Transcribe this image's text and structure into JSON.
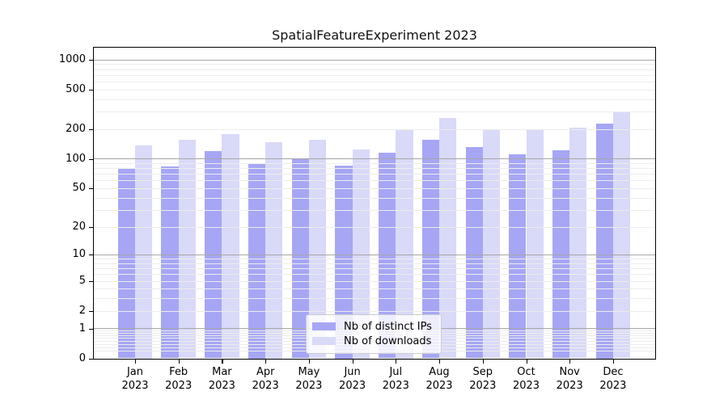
{
  "title": "SpatialFeatureExperiment 2023",
  "chart_data": {
    "type": "bar",
    "title": "SpatialFeatureExperiment 2023",
    "categories": [
      "Jan 2023",
      "Feb 2023",
      "Mar 2023",
      "Apr 2023",
      "May 2023",
      "Jun 2023",
      "Jul 2023",
      "Aug 2023",
      "Sep 2023",
      "Oct 2023",
      "Nov 2023",
      "Dec 2023"
    ],
    "series": [
      {
        "name": "Nb of distinct IPs",
        "color": "#a6a6f5",
        "values": [
          80,
          84,
          120,
          89,
          100,
          85,
          114,
          155,
          130,
          111,
          122,
          228
        ]
      },
      {
        "name": "Nb of downloads",
        "color": "#d9d9f8",
        "values": [
          136,
          155,
          178,
          148,
          156,
          125,
          200,
          258,
          198,
          195,
          207,
          296
        ]
      }
    ],
    "xlabel": "",
    "ylabel": "",
    "y_scale": "log10(value+1)",
    "y_ticks": [
      1000,
      500,
      200,
      100,
      50,
      20,
      10,
      5,
      2,
      1,
      0
    ],
    "ylim_top": 1300,
    "grid": true,
    "grid_minor_color": "#ececec",
    "grid_major_color": "#a6a6a6",
    "legend_position": "lower center"
  },
  "x_axis": {
    "months": [
      "Jan",
      "Feb",
      "Mar",
      "Apr",
      "May",
      "Jun",
      "Jul",
      "Aug",
      "Sep",
      "Oct",
      "Nov",
      "Dec"
    ],
    "year": "2023"
  }
}
